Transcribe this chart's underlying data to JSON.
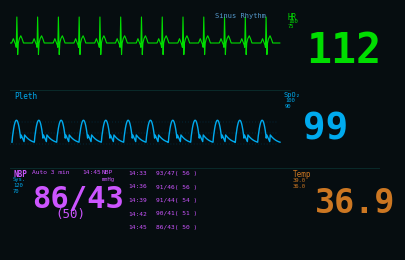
{
  "bg_color": "#060d10",
  "ecg_color": "#00dd00",
  "spo2_color": "#00aaee",
  "nbp_color": "#cc55ff",
  "temp_color": "#cc7722",
  "sinus_color": "#5599cc",
  "hr_value": "112",
  "hr_label": "HR",
  "sinus_label": "Sinus Rhythm",
  "spo2_value": "99",
  "spo2_label": "SpO₂",
  "pleth_label": "Pleth",
  "nbp_main": "86/43",
  "nbp_map": "(50)",
  "nbp_label": "NBP",
  "nbp_auto": "Auto 3 min",
  "nbp_time": "14:45",
  "nbp_unit": "mmHg",
  "nbp_sys": "Sys.",
  "temp_value": "36.9",
  "temp_label": "Temp",
  "bp_log": [
    [
      "14:33",
      "93/47( 56 )"
    ],
    [
      "14:36",
      "91/46( 56 )"
    ],
    [
      "14:39",
      "91/44( 54 )"
    ],
    [
      "14:42",
      "90/41( 51 )"
    ],
    [
      "14:45",
      "86/43( 50 )"
    ]
  ],
  "divider_color": "#0a2a2a",
  "dot_line_color": "#004466"
}
